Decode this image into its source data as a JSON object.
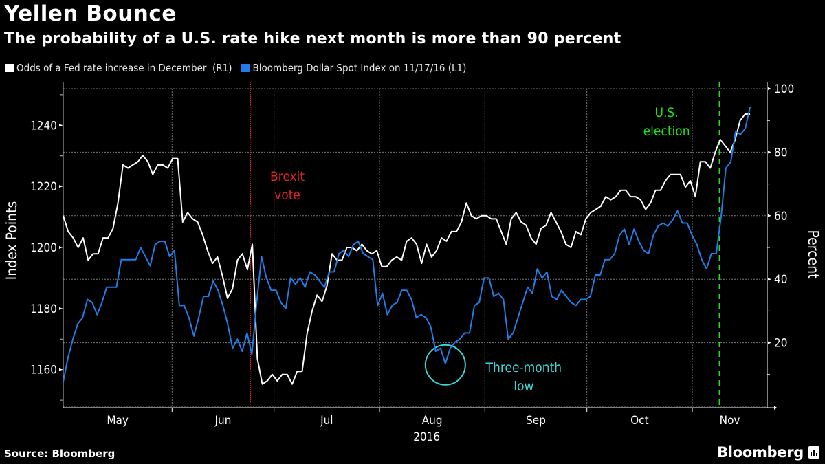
{
  "header": {
    "title": "Yellen Bounce",
    "subtitle": "The probability of a U.S. rate hike next month is more than 90 percent"
  },
  "legend": [
    {
      "label": "Odds of a Fed rate increase in December  (R1)",
      "color": "#ffffff"
    },
    {
      "label": "Bloomberg Dollar Spot Index on 11/17/16 (L1)",
      "color": "#1f7ee8"
    }
  ],
  "footer": {
    "source": "Source: Bloomberg",
    "brand": "Bloomberg",
    "brand_icon": "bar-chart-icon"
  },
  "chart_data": {
    "type": "line",
    "title": "Yellen Bounce",
    "subtitle": "The probability of a U.S. rate hike next month is more than 90 percent",
    "xlabel": "2016",
    "x_ticks": [
      "May",
      "Jun",
      "Jul",
      "Aug",
      "Sep",
      "Oct",
      "Nov"
    ],
    "x_range": [
      "2016-04-29",
      "2016-11-17"
    ],
    "y_left": {
      "label": "Index Points",
      "ticks": [
        1160,
        1180,
        1200,
        1220,
        1240
      ],
      "range": [
        1148,
        1252
      ]
    },
    "y_right": {
      "label": "Percent",
      "ticks": [
        20,
        40,
        60,
        80,
        100
      ],
      "range": [
        0,
        100
      ]
    },
    "grid": true,
    "legend_position": "top-left",
    "series": [
      {
        "name": "Odds of a Fed rate increase in December",
        "axis": "right",
        "color": "#ffffff",
        "values": [
          60,
          55,
          53,
          50,
          53,
          46,
          48,
          48,
          53,
          53,
          56,
          64,
          76,
          75,
          76,
          77,
          79,
          77,
          73,
          76,
          76,
          75,
          78,
          78,
          58,
          61,
          59,
          58,
          54,
          49,
          45,
          47,
          41,
          34,
          37,
          46,
          48,
          43,
          51,
          15,
          7,
          8,
          10,
          8,
          10,
          10,
          7,
          11,
          11,
          23,
          30,
          35,
          33,
          38,
          48,
          46,
          46,
          50,
          50,
          49,
          51,
          49,
          48,
          49,
          44,
          44,
          46,
          47,
          46,
          52,
          53,
          51,
          45,
          51,
          47,
          49,
          53,
          52,
          55,
          55,
          58,
          64,
          60,
          59,
          60,
          60,
          59,
          59,
          55,
          51,
          59,
          61,
          58,
          57,
          53,
          51,
          56,
          57,
          61,
          58,
          55,
          51,
          50,
          55,
          54,
          59,
          61,
          62,
          63,
          66,
          65,
          66,
          68,
          68,
          66,
          66,
          65,
          62,
          64,
          68,
          68,
          71,
          73,
          73,
          73,
          69,
          71,
          66,
          77,
          77,
          75,
          80,
          84,
          82,
          80,
          84,
          90,
          92,
          92
        ],
        "x_fraction_start": 0.0,
        "x_fraction_end": 0.9757
      },
      {
        "name": "Bloomberg Dollar Spot Index on 11/17/16",
        "axis": "left",
        "color": "#1f7ee8",
        "values": [
          1156,
          1164,
          1170,
          1175,
          1177,
          1183,
          1182,
          1178,
          1182,
          1187,
          1187,
          1187,
          1196,
          1196,
          1196,
          1196,
          1200,
          1197,
          1194,
          1201,
          1202,
          1202,
          1197,
          1199,
          1181,
          1181,
          1177,
          1171,
          1177,
          1184,
          1184,
          1189,
          1186,
          1181,
          1175,
          1167,
          1170,
          1166,
          1172,
          1165,
          1182,
          1197,
          1190,
          1186,
          1186,
          1182,
          1180,
          1190,
          1188,
          1190,
          1187,
          1192,
          1191,
          1189,
          1187,
          1192,
          1192,
          1198,
          1199,
          1197,
          1201,
          1202,
          1198,
          1197,
          1196,
          1181,
          1185,
          1178,
          1181,
          1182,
          1186,
          1186,
          1183,
          1177,
          1178,
          1177,
          1174,
          1166,
          1167,
          1162,
          1167,
          1169,
          1170,
          1172,
          1172,
          1181,
          1182,
          1190,
          1190,
          1184,
          1185,
          1183,
          1170,
          1172,
          1177,
          1182,
          1187,
          1185,
          1193,
          1190,
          1192,
          1184,
          1183,
          1186,
          1184,
          1182,
          1181,
          1183,
          1183,
          1184,
          1191,
          1191,
          1196,
          1196,
          1198,
          1204,
          1206,
          1201,
          1206,
          1202,
          1199,
          1198,
          1204,
          1207,
          1208,
          1207,
          1209,
          1212,
          1208,
          1208,
          1204,
          1201,
          1196,
          1193,
          1198,
          1198,
          1210,
          1226,
          1228,
          1238,
          1237,
          1239,
          1246
        ],
        "x_fraction_start": 0.0,
        "x_fraction_end": 0.9757
      }
    ],
    "annotations": [
      {
        "label_lines": [
          "Brexit",
          "vote"
        ],
        "type": "vline",
        "style": "dotted",
        "color": "#e0202a",
        "date": "2016-06-23"
      },
      {
        "label_lines": [
          "U.S.",
          "election"
        ],
        "type": "vline",
        "style": "dashed",
        "color": "#1ee01e",
        "date": "2016-11-08"
      },
      {
        "label_lines": [
          "Three-month",
          "low"
        ],
        "type": "circle",
        "color": "#3ad6d6",
        "series": "Bloomberg Dollar Spot Index on 11/17/16",
        "value": 1162
      }
    ]
  }
}
